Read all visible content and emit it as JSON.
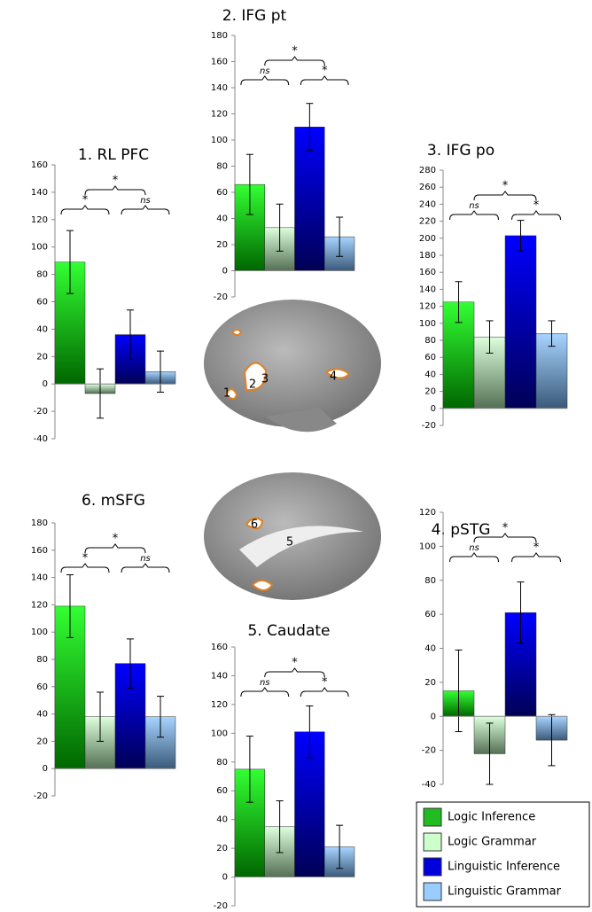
{
  "chart_data": [
    {
      "type": "bar",
      "title": "1. RL PFC",
      "values": [
        89,
        -7,
        36,
        9
      ],
      "errors": [
        23,
        18,
        18,
        15
      ],
      "ylim": [
        -40,
        160
      ],
      "yticks": [
        -40,
        -20,
        0,
        20,
        40,
        60,
        80,
        100,
        120,
        140,
        160
      ],
      "annotations": {
        "top": "*",
        "left": "*",
        "right": "ns"
      }
    },
    {
      "type": "bar",
      "title": "2. IFG pt",
      "values": [
        66,
        33,
        110,
        26
      ],
      "errors": [
        23,
        18,
        18,
        15
      ],
      "ylim": [
        -20,
        180
      ],
      "yticks": [
        -20,
        0,
        20,
        40,
        60,
        80,
        100,
        120,
        140,
        160,
        180
      ],
      "annotations": {
        "top": "*",
        "left": "ns",
        "right": "*"
      }
    },
    {
      "type": "bar",
      "title": "3. IFG po",
      "values": [
        125,
        84,
        203,
        88
      ],
      "errors": [
        24,
        19,
        18,
        15
      ],
      "ylim": [
        -20,
        280
      ],
      "yticks": [
        -20,
        0,
        20,
        40,
        60,
        80,
        100,
        120,
        140,
        160,
        180,
        200,
        220,
        240,
        260,
        280
      ],
      "annotations": {
        "top": "*",
        "left": "ns",
        "right": "*"
      }
    },
    {
      "type": "bar",
      "title": "4. pSTG",
      "values": [
        15,
        -22,
        61,
        -14
      ],
      "errors": [
        24,
        18,
        18,
        15
      ],
      "ylim": [
        -40,
        120
      ],
      "yticks": [
        -40,
        -20,
        0,
        20,
        40,
        60,
        80,
        100,
        120
      ],
      "annotations": {
        "top": "*",
        "left": "ns",
        "right": "*"
      }
    },
    {
      "type": "bar",
      "title": "5. Caudate",
      "values": [
        75,
        35,
        101,
        21
      ],
      "errors": [
        23,
        18,
        18,
        15
      ],
      "ylim": [
        -20,
        160
      ],
      "yticks": [
        -20,
        0,
        20,
        40,
        60,
        80,
        100,
        120,
        140,
        160
      ],
      "annotations": {
        "top": "*",
        "left": "ns",
        "right": "*"
      }
    },
    {
      "type": "bar",
      "title": "6. mSFG",
      "values": [
        119,
        38,
        77,
        38
      ],
      "errors": [
        23,
        18,
        18,
        15
      ],
      "ylim": [
        -20,
        180
      ],
      "yticks": [
        -20,
        0,
        20,
        40,
        60,
        80,
        100,
        120,
        140,
        160,
        180
      ],
      "annotations": {
        "top": "*",
        "left": "*",
        "right": "ns"
      }
    }
  ],
  "legend": [
    {
      "name": "Logic Inference",
      "color": "#22bb22"
    },
    {
      "name": "Logic Grammar",
      "color": "#ccffcc"
    },
    {
      "name": "Linguistic Inference",
      "color": "#0000dd"
    },
    {
      "name": "Linguistic Grammar",
      "color": "#99ccff"
    }
  ],
  "brain_labels": [
    "1",
    "2",
    "3",
    "4",
    "5",
    "6"
  ]
}
